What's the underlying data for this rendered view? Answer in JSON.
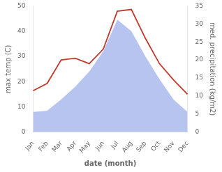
{
  "chart_data": {
    "type": "line",
    "categories": [
      "Jan",
      "Feb",
      "Mar",
      "Apr",
      "May",
      "Jun",
      "Jul",
      "Aug",
      "Sep",
      "Oct",
      "Nov",
      "Dec"
    ],
    "series": [
      {
        "type": "area",
        "color": "#b8c4f0",
        "values": [
          8.0,
          8.5,
          13.0,
          18.0,
          24.0,
          32.0,
          44.5,
          40.0,
          30.0,
          21.0,
          13.0,
          8.0
        ]
      },
      {
        "type": "line",
        "color": "#c0392b",
        "axis": "y2",
        "values": [
          11.5,
          13.5,
          20.0,
          20.5,
          19.0,
          23.0,
          33.5,
          34.0,
          26.0,
          19.0,
          14.5,
          10.5
        ]
      }
    ],
    "xlabel": "date (month)",
    "ylabel": "max temp (C)",
    "y2label": "med. precipitation (kg/m2)",
    "ylim": [
      0,
      50
    ],
    "yticks": [
      0,
      10,
      20,
      30,
      40,
      50
    ],
    "y2lim": [
      0,
      35
    ],
    "y2ticks": [
      0,
      5,
      10,
      15,
      20,
      25,
      30,
      35
    ],
    "grid": false
  }
}
